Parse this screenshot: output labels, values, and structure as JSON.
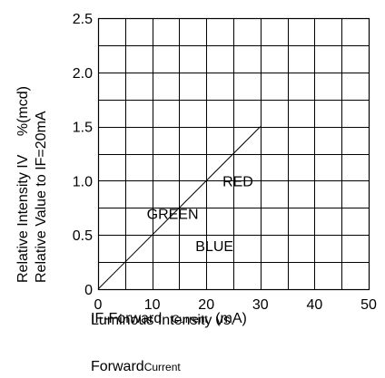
{
  "chart_data": {
    "type": "line",
    "xlabel": {
      "main": "IF-Forward",
      "small": "Current",
      "unit": "(mA)"
    },
    "ylabel": {
      "line1": "Relative Intensity IV",
      "line1_unit": "%(mcd)",
      "line2": "Relative Value to IF=20mA"
    },
    "caption": {
      "line1": "Luminous Intensity vs.",
      "line2_main": "Forward",
      "line2_small": "Current"
    },
    "xlim": [
      0,
      50
    ],
    "ylim": [
      0,
      2.5
    ],
    "x_ticks": [
      0,
      10,
      20,
      30,
      40,
      50
    ],
    "x_tick_labels": [
      "0",
      "10",
      "20",
      "30",
      "40",
      "50"
    ],
    "y_ticks": [
      0,
      0.5,
      1.0,
      1.5,
      2.0,
      2.5
    ],
    "y_tick_labels": [
      "0",
      "0.5",
      "1.0",
      "1.5",
      "2.0",
      "2.5"
    ],
    "grid": true,
    "series_labels": [
      {
        "text": "RED",
        "x": 23,
        "y": 1.0
      },
      {
        "text": "GREEN",
        "x": 9,
        "y": 0.7
      },
      {
        "text": "BLUE",
        "x": 18,
        "y": 0.4
      }
    ],
    "series": [
      {
        "x": [
          0,
          30
        ],
        "y": [
          0,
          1.5
        ]
      }
    ]
  }
}
